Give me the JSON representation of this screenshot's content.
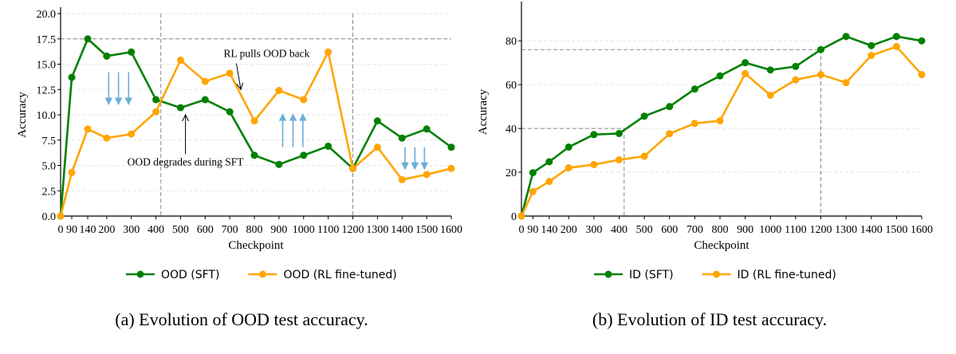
{
  "chart_data": [
    {
      "type": "line",
      "caption": "(a) Evolution of OOD test accuracy.",
      "xlabel": "Checkpoint",
      "ylabel": "Accuracy",
      "x": [
        0,
        90,
        140,
        200,
        300,
        400,
        500,
        600,
        700,
        800,
        900,
        1000,
        1100,
        1200,
        1300,
        1400,
        1500,
        1600
      ],
      "xticks": [
        "0",
        "90",
        "140",
        "200",
        "300",
        "400",
        "500",
        "600",
        "700",
        "800",
        "900",
        "1000",
        "1100",
        "1200",
        "1300",
        "1400",
        "1500",
        "1600"
      ],
      "ylim": [
        0,
        20
      ],
      "yticks": [
        "0.0",
        "2.5",
        "5.0",
        "7.5",
        "10.0",
        "12.5",
        "15.0",
        "17.5",
        "20.0"
      ],
      "grid": "horizontal dashed",
      "legend_position": "bottom",
      "series": [
        {
          "name": "OOD (SFT)",
          "color": "#008000",
          "values": [
            0,
            13.7,
            17.5,
            15.8,
            16.2,
            11.5,
            10.7,
            11.5,
            10.3,
            6.0,
            5.1,
            6.0,
            6.9,
            4.7,
            9.4,
            7.7,
            8.6,
            6.8
          ]
        },
        {
          "name": "OOD (RL fine-tuned)",
          "color": "#FFA500",
          "values": [
            0,
            4.3,
            8.6,
            7.7,
            8.1,
            10.3,
            15.4,
            13.3,
            14.1,
            9.4,
            12.4,
            11.5,
            16.2,
            4.7,
            6.8,
            3.6,
            4.1,
            4.7
          ]
        }
      ],
      "reference_lines": {
        "horizontal": [
          17.5
        ],
        "vertical": [
          420,
          1200
        ]
      },
      "annotations": [
        {
          "text": "RL pulls OOD back",
          "x": 850,
          "y": 15.7,
          "arrow_to": [
            745,
            12.5
          ]
        },
        {
          "text": "OOD degrades during SFT",
          "x": 520,
          "y": 5.0,
          "arrow_to": [
            520,
            10.0
          ]
        }
      ],
      "blue_arrows": [
        {
          "direction": "down",
          "x": [
            208,
            248,
            289
          ],
          "from": 14.2,
          "to": 11.2
        },
        {
          "direction": "up",
          "x": [
            915,
            957,
            997
          ],
          "from": 6.8,
          "to": 9.9
        },
        {
          "direction": "down",
          "x": [
            1412,
            1452,
            1491
          ],
          "from": 6.8,
          "to": 4.8
        }
      ]
    },
    {
      "type": "line",
      "caption": "(b) Evolution of ID test accuracy.",
      "xlabel": "Checkpoint",
      "ylabel": "Accuracy",
      "x": [
        0,
        90,
        140,
        200,
        300,
        400,
        500,
        600,
        700,
        800,
        900,
        1000,
        1100,
        1200,
        1300,
        1400,
        1500,
        1600
      ],
      "xticks": [
        "0",
        "90",
        "140",
        "200",
        "300",
        "400",
        "500",
        "600",
        "700",
        "800",
        "900",
        "1000",
        "1100",
        "1200",
        "1300",
        "1400",
        "1500",
        "1600"
      ],
      "ylim": [
        0,
        95
      ],
      "yticks": [
        "0",
        "20",
        "40",
        "60",
        "80"
      ],
      "grid": "horizontal dashed",
      "legend_position": "bottom",
      "series": [
        {
          "name": "ID (SFT)",
          "color": "#008000",
          "values": [
            0,
            19.8,
            24.8,
            31.5,
            37.2,
            37.7,
            45.6,
            50.0,
            58.0,
            64.0,
            70.0,
            66.7,
            68.3,
            76.0,
            82.0,
            77.8,
            82.0,
            80.0
          ]
        },
        {
          "name": "ID (RL fine-tuned)",
          "color": "#FFA500",
          "values": [
            0,
            11.2,
            15.8,
            22.0,
            23.5,
            25.7,
            27.3,
            37.6,
            42.3,
            43.5,
            65.0,
            55.2,
            62.2,
            64.6,
            60.9,
            73.3,
            77.4,
            64.6
          ]
        }
      ],
      "reference_lines": {
        "segments": [
          {
            "x": 420,
            "y": 40
          },
          {
            "x": 1200,
            "y": 76
          }
        ]
      }
    }
  ]
}
